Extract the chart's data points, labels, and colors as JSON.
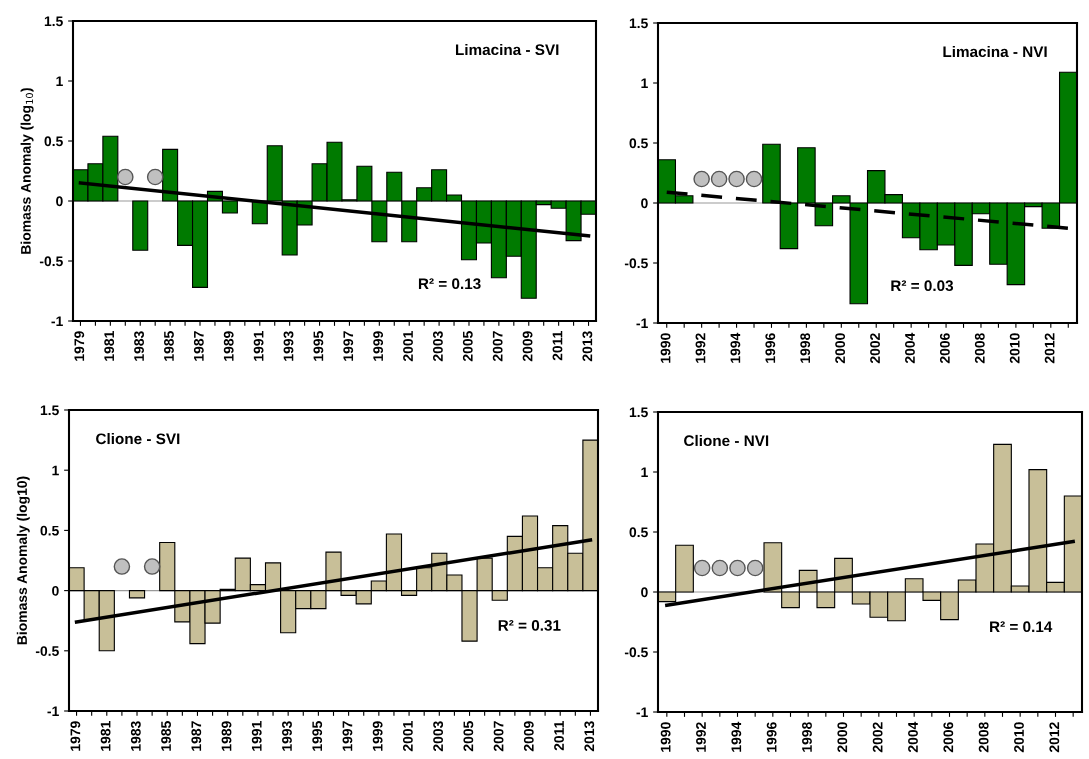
{
  "chart_data": [
    {
      "type": "bar",
      "ylabel": "Biomass Anomaly (log$_{10}$)",
      "ylim": [
        -1,
        1.5
      ],
      "yticks": [
        -1,
        -0.5,
        0,
        0.5,
        1,
        1.5
      ],
      "categories": [
        "1979",
        null,
        "1981",
        null,
        "1983",
        null,
        "1985",
        null,
        "1987",
        null,
        "1989",
        null,
        "1991",
        null,
        "1993",
        null,
        "1995",
        null,
        "1997",
        null,
        "1999",
        null,
        "2001",
        null,
        "2003",
        null,
        "2005",
        null,
        "2007",
        null,
        "2009",
        null,
        "2011",
        null,
        "2013"
      ],
      "series": [
        {
          "color": "#007a00",
          "values": [
            0.26,
            0.31,
            0.54,
            null,
            -0.41,
            null,
            0.43,
            -0.37,
            -0.72,
            0.08,
            -0.1,
            null,
            -0.19,
            0.46,
            -0.45,
            -0.2,
            0.31,
            0.49,
            0.01,
            0.29,
            -0.34,
            0.24,
            -0.34,
            0.11,
            0.26,
            0.05,
            -0.49,
            -0.35,
            -0.64,
            -0.46,
            -0.81,
            -0.03,
            -0.06,
            -0.33,
            -0.11
          ]
        },
        {
          "type": "scatter",
          "color": "#c0c0c0",
          "marker": "circle",
          "values": [
            null,
            null,
            null,
            0.2,
            null,
            0.2,
            null,
            null,
            null,
            null,
            null,
            null,
            null,
            null,
            null,
            null,
            null,
            null,
            null,
            null,
            null,
            null,
            null,
            null,
            null,
            null,
            null,
            null,
            null,
            null,
            null,
            null,
            null,
            null,
            null
          ]
        },
        {
          "type": "line",
          "color": "#000000",
          "line_style": "solid",
          "values": [
            0.15,
            null,
            null,
            null,
            null,
            null,
            null,
            null,
            null,
            null,
            null,
            null,
            null,
            null,
            null,
            null,
            null,
            null,
            null,
            null,
            null,
            null,
            null,
            null,
            null,
            null,
            null,
            null,
            null,
            null,
            null,
            null,
            null,
            null,
            -0.29
          ]
        }
      ],
      "annotations": [
        "Limacina - SVI",
        "R² = 0.13"
      ]
    },
    {
      "type": "bar",
      "ylim": [
        -1,
        1.5
      ],
      "yticks": [
        -1,
        -0.5,
        0,
        0.5,
        1,
        1.5
      ],
      "categories": [
        "1990",
        null,
        "1992",
        null,
        "1994",
        null,
        "1996",
        null,
        "1998",
        null,
        "2000",
        null,
        "2002",
        null,
        "2004",
        null,
        "2006",
        null,
        "2008",
        null,
        "2010",
        null,
        "2012",
        null
      ],
      "series": [
        {
          "color": "#007a00",
          "values": [
            0.36,
            0.06,
            null,
            null,
            null,
            null,
            0.49,
            -0.38,
            0.46,
            -0.19,
            0.06,
            -0.84,
            0.27,
            0.07,
            -0.29,
            -0.39,
            -0.35,
            -0.52,
            -0.09,
            -0.51,
            -0.68,
            -0.03,
            -0.21,
            1.09
          ]
        },
        {
          "type": "scatter",
          "color": "#c0c0c0",
          "marker": "circle",
          "values": [
            null,
            null,
            0.2,
            0.2,
            0.2,
            0.2,
            null,
            null,
            null,
            null,
            null,
            null,
            null,
            null,
            null,
            null,
            null,
            null,
            null,
            null,
            null,
            null,
            null,
            null
          ]
        },
        {
          "type": "line",
          "color": "#000000",
          "line_style": "dashed",
          "values": [
            0.09,
            null,
            null,
            null,
            null,
            null,
            null,
            null,
            null,
            null,
            null,
            null,
            null,
            null,
            null,
            null,
            null,
            null,
            null,
            null,
            null,
            null,
            null,
            -0.21
          ]
        }
      ],
      "annotations": [
        "Limacina - NVI",
        "R² = 0.03"
      ]
    },
    {
      "type": "bar",
      "ylabel": "Biomass Anomaly (log10)",
      "ylim": [
        -1,
        1.5
      ],
      "yticks": [
        -1,
        -0.5,
        0,
        0.5,
        1,
        1.5
      ],
      "categories": [
        "1979",
        null,
        "1981",
        null,
        "1983",
        null,
        "1985",
        null,
        "1987",
        null,
        "1989",
        null,
        "1991",
        null,
        "1993",
        null,
        "1995",
        null,
        "1997",
        null,
        "1999",
        null,
        "2001",
        null,
        "2003",
        null,
        "2005",
        null,
        "2007",
        null,
        "2009",
        null,
        "2011",
        null,
        "2013"
      ],
      "series": [
        {
          "color": "#c8bf98",
          "values": [
            0.19,
            -0.24,
            -0.5,
            null,
            -0.06,
            null,
            0.4,
            -0.26,
            -0.44,
            -0.27,
            0.01,
            0.27,
            0.05,
            0.23,
            -0.35,
            -0.15,
            -0.15,
            0.32,
            -0.04,
            -0.11,
            0.08,
            0.47,
            -0.04,
            0.19,
            0.31,
            0.13,
            -0.42,
            0.27,
            -0.08,
            0.45,
            0.62,
            0.19,
            0.54,
            0.31,
            1.25
          ]
        },
        {
          "type": "scatter",
          "color": "#c0c0c0",
          "marker": "circle",
          "values": [
            null,
            null,
            null,
            0.2,
            null,
            0.2,
            null,
            null,
            null,
            null,
            null,
            null,
            null,
            null,
            null,
            null,
            null,
            null,
            null,
            null,
            null,
            null,
            null,
            null,
            null,
            null,
            null,
            null,
            null,
            null,
            null,
            null,
            null,
            null,
            null
          ]
        },
        {
          "type": "line",
          "color": "#000000",
          "line_style": "solid",
          "values": [
            -0.26,
            null,
            null,
            null,
            null,
            null,
            null,
            null,
            null,
            null,
            null,
            null,
            null,
            null,
            null,
            null,
            null,
            null,
            null,
            null,
            null,
            null,
            null,
            null,
            null,
            null,
            null,
            null,
            null,
            null,
            null,
            null,
            null,
            null,
            0.42
          ]
        }
      ],
      "annotations": [
        "Clione - SVI",
        "R² = 0.31"
      ]
    },
    {
      "type": "bar",
      "ylim": [
        -1,
        1.5
      ],
      "yticks": [
        -1,
        -0.5,
        0,
        0.5,
        1,
        1.5
      ],
      "categories": [
        "1990",
        null,
        "1992",
        null,
        "1994",
        null,
        "1996",
        null,
        "1998",
        null,
        "2000",
        null,
        "2002",
        null,
        "2004",
        null,
        "2006",
        null,
        "2008",
        null,
        "2010",
        null,
        "2012",
        null
      ],
      "series": [
        {
          "color": "#c8bf98",
          "values": [
            -0.08,
            0.39,
            null,
            null,
            null,
            null,
            0.41,
            -0.13,
            0.18,
            -0.13,
            0.28,
            -0.1,
            -0.21,
            -0.24,
            0.11,
            -0.07,
            -0.23,
            0.1,
            0.4,
            1.23,
            0.05,
            1.02,
            0.08,
            0.8
          ]
        },
        {
          "type": "scatter",
          "color": "#c0c0c0",
          "marker": "circle",
          "values": [
            null,
            null,
            0.2,
            0.2,
            0.2,
            0.2,
            null,
            null,
            null,
            null,
            null,
            null,
            null,
            null,
            null,
            null,
            null,
            null,
            null,
            null,
            null,
            null,
            null,
            null
          ]
        },
        {
          "type": "line",
          "color": "#000000",
          "line_style": "solid",
          "values": [
            -0.11,
            null,
            null,
            null,
            null,
            null,
            null,
            null,
            null,
            null,
            null,
            null,
            null,
            null,
            null,
            null,
            null,
            null,
            null,
            null,
            null,
            null,
            null,
            0.42
          ]
        }
      ],
      "annotations": [
        "Clione - NVI",
        "R² = 0.14"
      ]
    }
  ]
}
